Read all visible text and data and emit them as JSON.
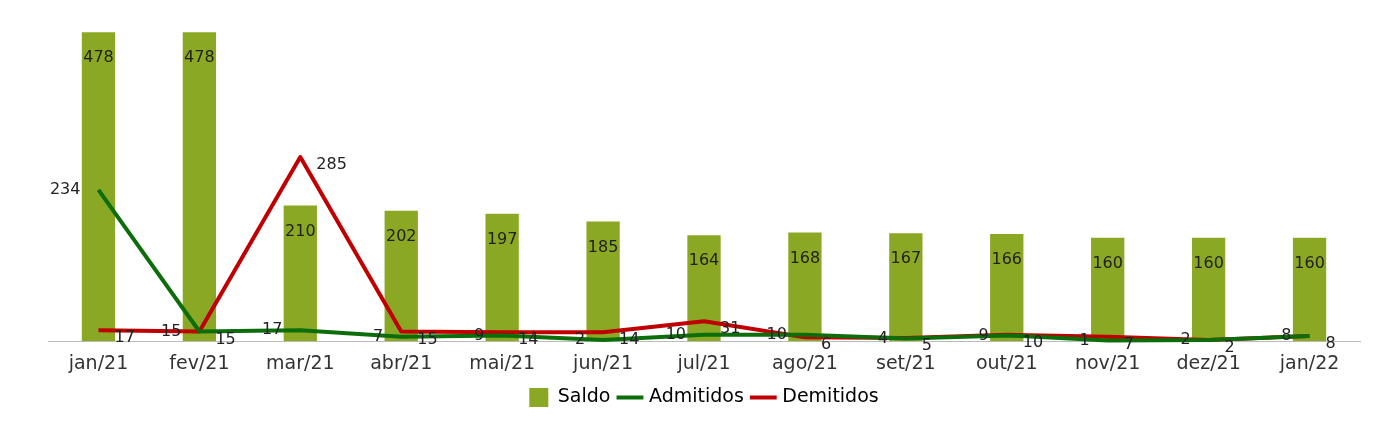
{
  "chart_data": {
    "type": "bar",
    "categories": [
      "jan/21",
      "fev/21",
      "mar/21",
      "abr/21",
      "mai/21",
      "jun/21",
      "jul/21",
      "ago/21",
      "set/21",
      "out/21",
      "nov/21",
      "dez/21",
      "jan/22"
    ],
    "series": [
      {
        "name": "Saldo",
        "color": "#8aa823",
        "values": [
          478,
          478,
          210,
          202,
          197,
          185,
          164,
          168,
          167,
          166,
          160,
          160,
          160
        ]
      },
      {
        "name": "Admitidos",
        "type": "line",
        "color": "#0b6e0b",
        "values": [
          234,
          15,
          17,
          7,
          9,
          2,
          10,
          10,
          4,
          9,
          1,
          2,
          8
        ]
      },
      {
        "name": "Demitidos",
        "type": "line",
        "color": "#c00000",
        "values": [
          17,
          15,
          285,
          15,
          14,
          14,
          31,
          6,
          5,
          10,
          7,
          2,
          8
        ]
      }
    ],
    "data_labels": true,
    "legend": "bottom"
  }
}
